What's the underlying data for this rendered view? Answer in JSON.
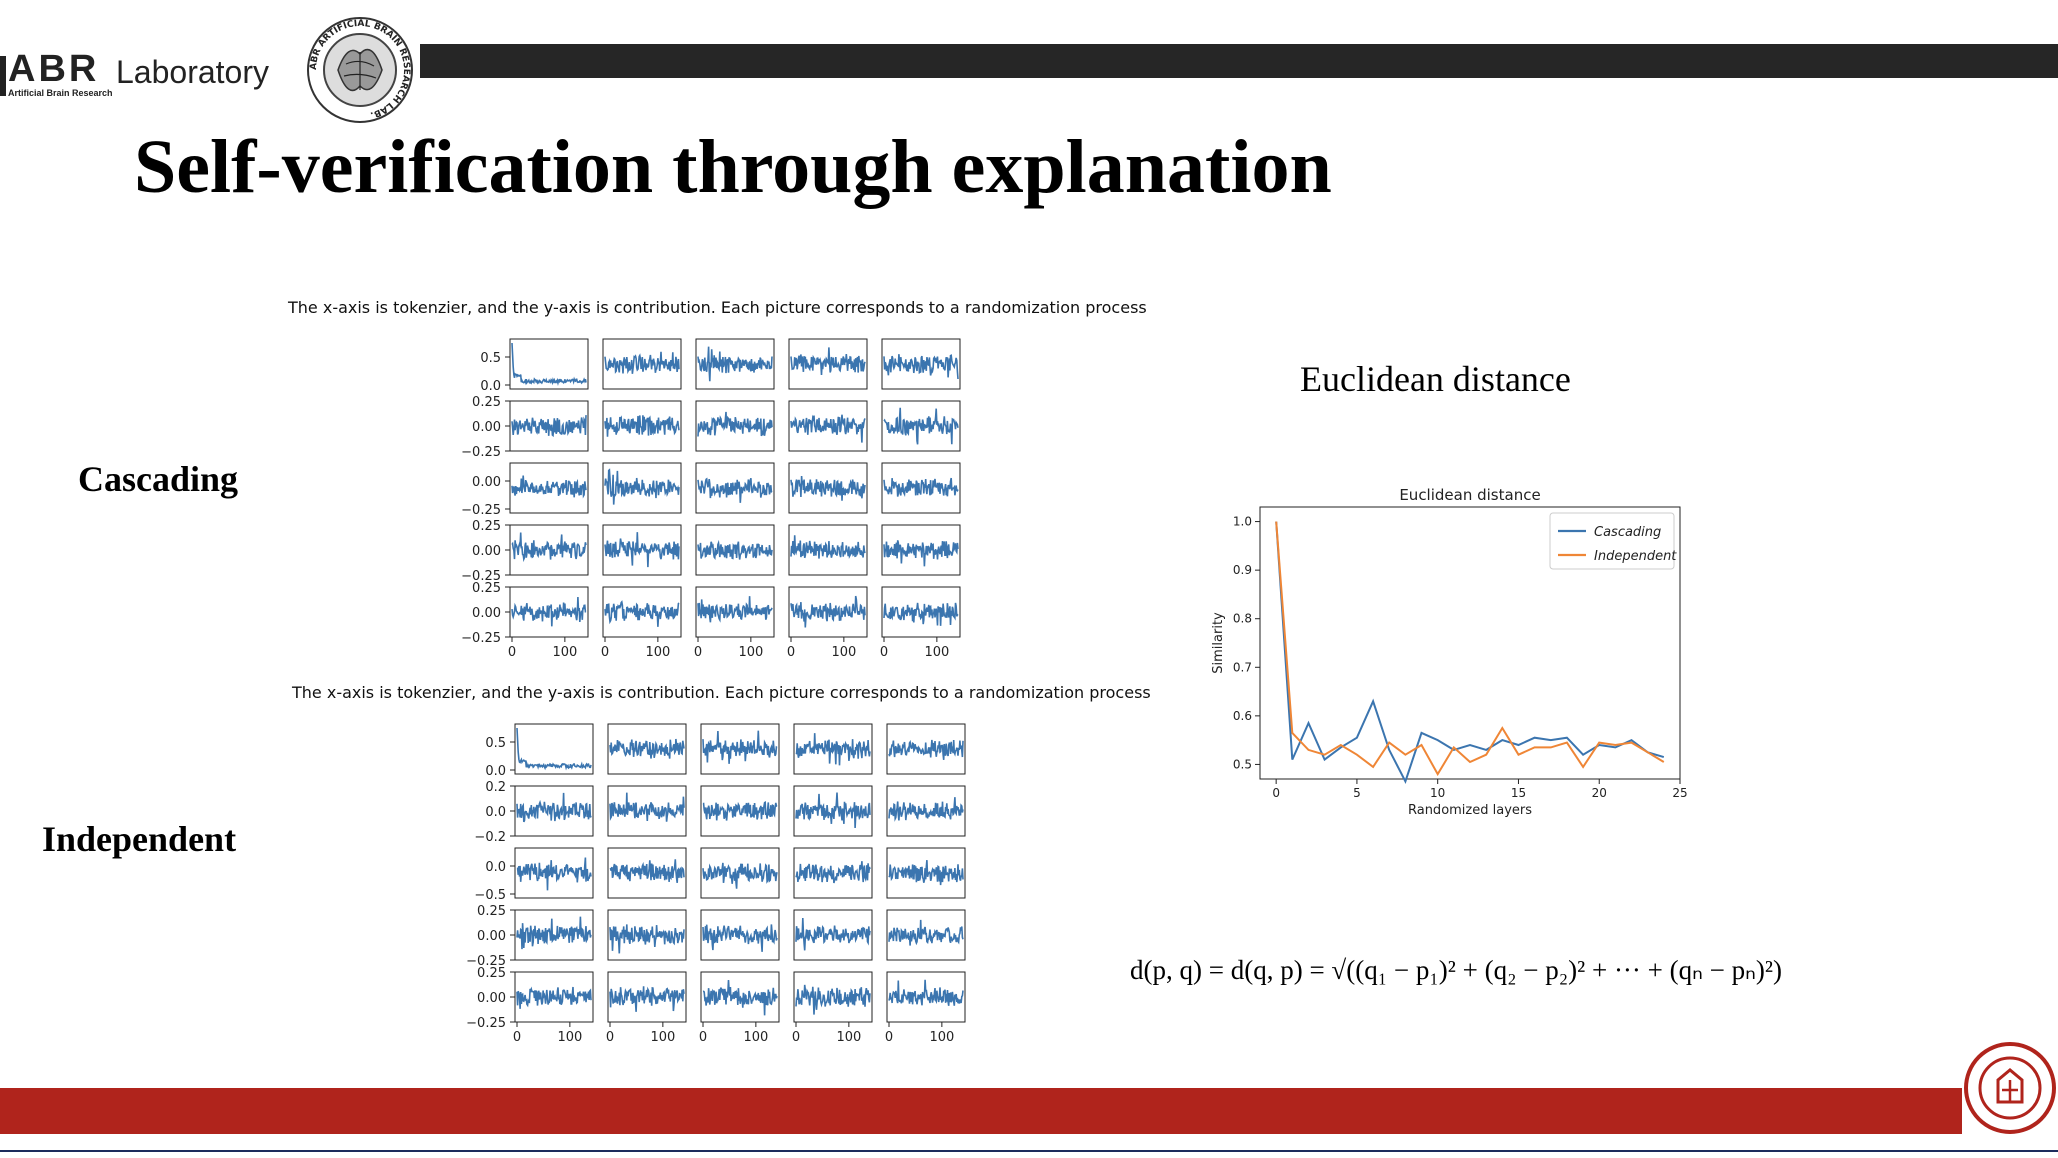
{
  "slide": {
    "title": "Self-verification through explanation",
    "logo": {
      "abr": "ABR",
      "lab": "Laboratory",
      "sub": "Artificial Brain Research",
      "seal_text": "ABR ARTIFICIAL BRAIN RESEARCH LAB."
    },
    "row_labels": {
      "cascading": "Cascading",
      "independent": "Independent"
    },
    "captions": {
      "cascading": "The x-axis is tokenzier, and the y-axis is contribution. Each picture corresponds to a randomization process",
      "independent": "The x-axis is tokenzier, and the y-axis is contribution. Each picture corresponds to a randomization process"
    },
    "ed_heading": "Euclidean distance",
    "formula": "d(p, q) = d(q, p) = √((q₁ − p₁)² + (q₂ − p₂)² + ··· + (qₙ − pₙ)²)",
    "colors": {
      "top_bar": "#262626",
      "bottom_bar": "#b0241c",
      "series_blue": "#3b75af",
      "series_orange": "#ef8636"
    },
    "emblem": "university-seal-icon"
  },
  "chart_data": [
    {
      "type": "line",
      "id": "cascading-grid",
      "layout": "grid 5x5",
      "x_ticks": [
        "0",
        "100"
      ],
      "row_y_ticks": [
        [
          "0.5",
          "0.0"
        ],
        [
          "0.25",
          "0.00",
          "−0.25"
        ],
        [
          "0.00",
          "−0.25"
        ],
        [
          "0.25",
          "0.00",
          "−0.25"
        ],
        [
          "0.25",
          "0.00",
          "−0.25"
        ]
      ],
      "color": "#3b75af"
    },
    {
      "type": "line",
      "id": "independent-grid",
      "layout": "grid 5x5",
      "x_ticks": [
        "0",
        "100"
      ],
      "row_y_ticks": [
        [
          "0.5",
          "0.0"
        ],
        [
          "0.2",
          "0.0",
          "−0.2"
        ],
        [
          "0.0",
          "−0.5"
        ],
        [
          "0.25",
          "0.00",
          "−0.25"
        ],
        [
          "0.25",
          "0.00",
          "−0.25"
        ]
      ],
      "color": "#3b75af"
    },
    {
      "type": "line",
      "id": "euclidean-chart",
      "title": "Euclidean distance",
      "xlabel": "Randomized layers",
      "ylabel": "Similarity",
      "xlim": [
        -1,
        25
      ],
      "ylim": [
        0.47,
        1.03
      ],
      "x_ticks": [
        0,
        5,
        10,
        15,
        20,
        25
      ],
      "y_ticks": [
        0.5,
        0.6,
        0.7,
        0.8,
        0.9,
        1.0
      ],
      "legend": "top-right",
      "x": [
        0,
        1,
        2,
        3,
        4,
        5,
        6,
        7,
        8,
        9,
        10,
        11,
        12,
        13,
        14,
        15,
        16,
        17,
        18,
        19,
        20,
        21,
        22,
        23,
        24
      ],
      "series": [
        {
          "name": "Cascading",
          "color": "#3b75af",
          "values": [
            1.0,
            0.51,
            0.585,
            0.51,
            0.535,
            0.555,
            0.63,
            0.53,
            0.465,
            0.565,
            0.55,
            0.53,
            0.54,
            0.53,
            0.55,
            0.54,
            0.555,
            0.55,
            0.555,
            0.52,
            0.54,
            0.535,
            0.55,
            0.525,
            0.515
          ]
        },
        {
          "name": "Independent",
          "color": "#ef8636",
          "values": [
            1.0,
            0.565,
            0.53,
            0.52,
            0.54,
            0.52,
            0.495,
            0.545,
            0.52,
            0.54,
            0.48,
            0.535,
            0.505,
            0.52,
            0.575,
            0.52,
            0.535,
            0.535,
            0.545,
            0.495,
            0.545,
            0.54,
            0.545,
            0.525,
            0.505
          ]
        }
      ]
    }
  ]
}
